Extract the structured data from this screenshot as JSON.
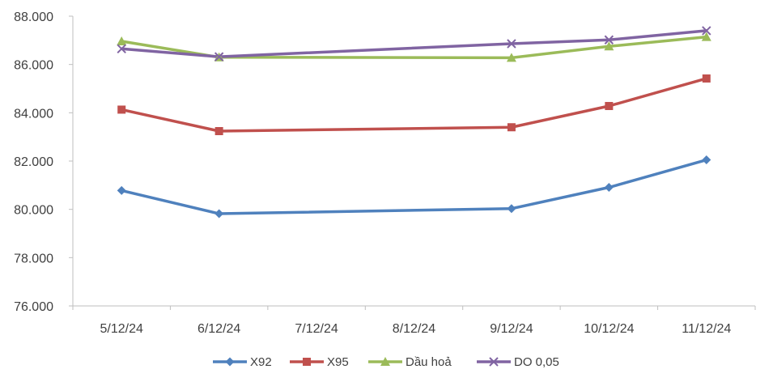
{
  "chart_data": {
    "type": "line",
    "title": "",
    "xlabel": "",
    "ylabel": "",
    "categories": [
      "5/12/24",
      "6/12/24",
      "7/12/24",
      "8/12/24",
      "9/12/24",
      "10/12/24",
      "11/12/24"
    ],
    "ylim": [
      76000,
      88000
    ],
    "yticks": [
      76000,
      78000,
      80000,
      82000,
      84000,
      86000,
      88000
    ],
    "ytick_labels": [
      "76.000",
      "78.000",
      "80.000",
      "82.000",
      "84.000",
      "86.000",
      "88.000"
    ],
    "grid": false,
    "legend_position": "bottom",
    "series": [
      {
        "name": "X92",
        "color": "#4F81BD",
        "marker": "diamond",
        "values": [
          80780,
          79820,
          null,
          null,
          80030,
          80910,
          82050
        ]
      },
      {
        "name": "X95",
        "color": "#C0504D",
        "marker": "square",
        "values": [
          84130,
          83240,
          null,
          null,
          83400,
          84280,
          85420
        ]
      },
      {
        "name": "Dầu hoả",
        "color": "#9BBB59",
        "marker": "triangle",
        "values": [
          86960,
          86300,
          null,
          null,
          86280,
          86750,
          87140
        ]
      },
      {
        "name": "DO 0,05",
        "color": "#8064A2",
        "marker": "x",
        "values": [
          86650,
          86320,
          null,
          null,
          86860,
          87020,
          87400
        ]
      }
    ]
  }
}
